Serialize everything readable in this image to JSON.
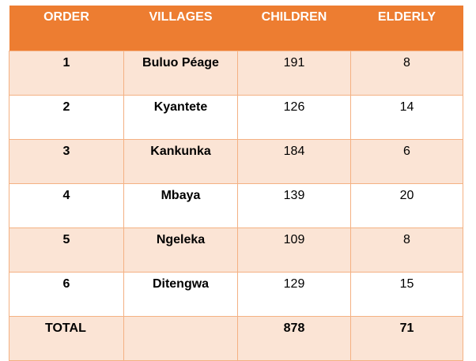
{
  "table": {
    "headers": [
      "ORDER",
      "VILLAGES",
      "CHILDREN",
      "ELDERLY"
    ],
    "rows": [
      {
        "order": "1",
        "village": "Buluo Péage",
        "children": "191",
        "elderly": "8"
      },
      {
        "order": "2",
        "village": "Kyantete",
        "children": "126",
        "elderly": "14"
      },
      {
        "order": "3",
        "village": "Kankunka",
        "children": "184",
        "elderly": "6"
      },
      {
        "order": "4",
        "village": "Mbaya",
        "children": "139",
        "elderly": "20"
      },
      {
        "order": "5",
        "village": "Ngeleka",
        "children": "109",
        "elderly": "8"
      },
      {
        "order": "6",
        "village": "Ditengwa",
        "children": "129",
        "elderly": "15"
      }
    ],
    "total": {
      "label": "TOTAL",
      "village": "",
      "children": "878",
      "elderly": "71"
    }
  },
  "colors": {
    "header_bg": "#ed7d31",
    "band_bg": "#fbe4d5",
    "border": "#f4b183"
  }
}
